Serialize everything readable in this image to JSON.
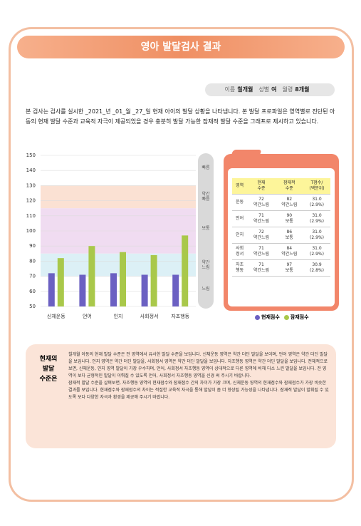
{
  "header": {
    "title": "영아 발달검사 결과"
  },
  "info": [
    {
      "label": "이름",
      "value": "칠개월"
    },
    {
      "label": "성별",
      "value": "여"
    },
    {
      "label": "월령",
      "value": "8개월"
    }
  ],
  "intro": "본 검사는 검사를 실시한 _2021_년 _01_월 _27_일 현재 아이의 발달 상황을 나타냅니다. 본 발달 프로파일은 영역별로 진단된 아동의 현재 발달 수준과 교육적 자극이 제공되었을 경우 충분히 발달 가능한 잠재적 발달 수준을 그래프로 제시하고 있습니다.",
  "chart_data": {
    "type": "bar",
    "categories": [
      "신체운동",
      "언어",
      "인지",
      "사회정서",
      "자조행동"
    ],
    "series": [
      {
        "name": "현재점수",
        "color": "#6b60c2",
        "values": [
          72,
          71,
          72,
          71,
          71
        ]
      },
      {
        "name": "잠재점수",
        "color": "#a9c84a",
        "values": [
          82,
          90,
          86,
          84,
          97
        ]
      }
    ],
    "ylim": [
      50,
      150
    ],
    "yticks": [
      50,
      60,
      70,
      80,
      90,
      100,
      110,
      120,
      130,
      140,
      150
    ],
    "grid": true,
    "bands": [
      {
        "label": "빠름",
        "from": 130,
        "to": 150,
        "color": "#ffffff"
      },
      {
        "label": "약간\n빠름",
        "from": 115,
        "to": 130,
        "color": "#fbe1d3"
      },
      {
        "label": "보통",
        "from": 85,
        "to": 115,
        "color": "#f0dcf1"
      },
      {
        "label": "약간\n느림",
        "from": 70,
        "to": 85,
        "color": "#dcf0f6"
      },
      {
        "label": "느림",
        "from": 50,
        "to": 70,
        "color": "#ffffff"
      }
    ]
  },
  "table": {
    "header": [
      "영역",
      "현재\n수준",
      "잠재적\n수준",
      "T점수/\n(백분위)"
    ],
    "rows": [
      [
        "운동",
        "72\n약간느림",
        "82\n약간느림",
        "31.0\n(2.9%)"
      ],
      [
        "언어",
        "71\n약간느림",
        "90\n보통",
        "31.0\n(2.9%)"
      ],
      [
        "인지",
        "72\n약간느림",
        "86\n보통",
        "31.0\n(2.9%)"
      ],
      [
        "사회\n정서",
        "71\n약간느림",
        "84\n약간느림",
        "31.0\n(2.9%)"
      ],
      [
        "자조\n행동",
        "71\n약간느림",
        "97\n보통",
        "30.9\n(2.8%)"
      ]
    ]
  },
  "summary": {
    "title": "현재의\n발달\n수준은",
    "paragraphs": [
      "칠개월 아동의 현재 발달 수준은 전 영역에서 유사한 발달 수준을 보입니다. 신체운동 영역은 약간 더딘 발달을 보이며, 언어 영역은 약간 더딘 발달을 보입니다. 인지 영역은 약간 더딘 발달을, 사회정서 영역은 약간 더딘 발달을 보입니다. 자조행동 영역은 약간 더딘 발달을 보입니다. 전체적으로 보면, 신체운동, 인지 영역 발달이 가장 우수하며, 언어, 사회정서 자조행동 영역이 상대적으로 다른 영역에 비해 다소 느린 발달을 보입니다. 전 영역이 보다 균형적인 발달이 이뤄질 수 있도록 언어, 사회정서 자조행동 영역을 신경 써 주시기 바랍니다.",
      "잠재적 발달 수준을 살펴보면, 자조행동 영역의 현재점수와 잠재점수 간의 차이가 가장 크며, 신체운동 영역의 현재점수와 잠재점수가 가장 비슷한 결과를 보입니다. 현재점수와 잠재점수의 차이는 적절한 교육적 자극을 통해 발달이 좀 더 향상될 가능성을 나타냅니다. 잠재적 발달이 발휘될 수 있도록 보다 다양한 자극과 환경을 제공해 주시기 바랍니다."
    ]
  }
}
